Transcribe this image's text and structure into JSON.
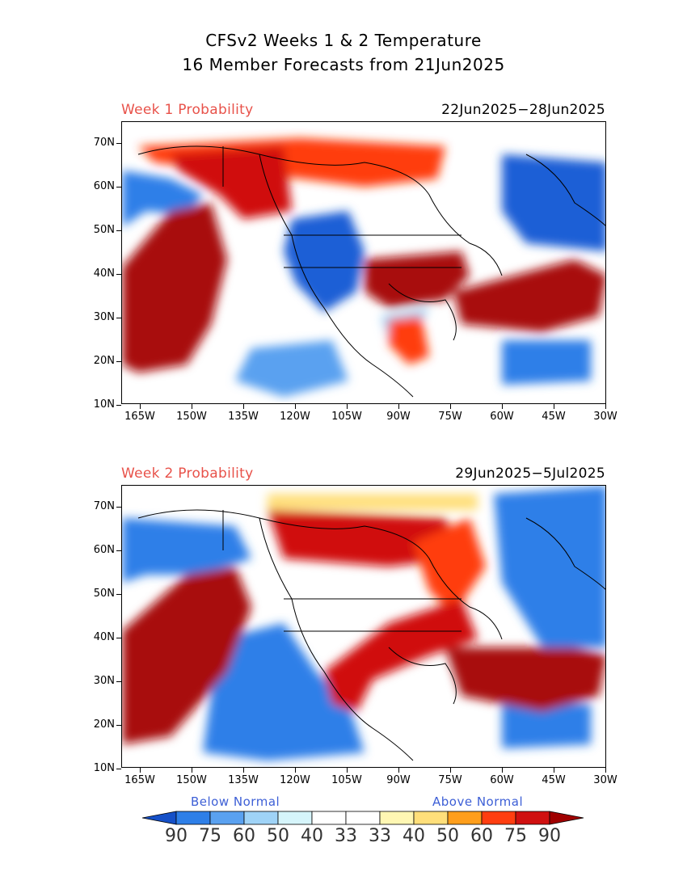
{
  "header": {
    "title_line1": "CFSv2 Weeks 1 & 2 Temperature",
    "title_line2": "16 Member Forecasts from 21Jun2025"
  },
  "panels": [
    {
      "label": "Week 1 Probability",
      "dates": "22Jun2025−28Jun2025"
    },
    {
      "label": "Week 2 Probability",
      "dates": "29Jun2025−5Jul2025"
    }
  ],
  "axes": {
    "lat_labels": [
      "70N",
      "60N",
      "50N",
      "40N",
      "30N",
      "20N",
      "10N"
    ],
    "lon_labels": [
      "165W",
      "150W",
      "135W",
      "120W",
      "105W",
      "90W",
      "75W",
      "60W",
      "45W",
      "30W"
    ]
  },
  "legend": {
    "below_label": "Below Normal",
    "above_label": "Above Normal",
    "numbers": [
      "90",
      "75",
      "60",
      "50",
      "40",
      "33",
      "33",
      "40",
      "50",
      "60",
      "75",
      "90"
    ],
    "colors": [
      "#1a5fd6",
      "#2e7fe8",
      "#5aa1f0",
      "#9fd3f7",
      "#d6f5fb",
      "#ffffff",
      "#ffffff",
      "#fff7b3",
      "#ffdf7a",
      "#ff9e1b",
      "#ff3e10",
      "#d01010",
      "#a80a0a"
    ],
    "arrow_left_color": "#1550c8",
    "arrow_right_color": "#a00000"
  }
}
